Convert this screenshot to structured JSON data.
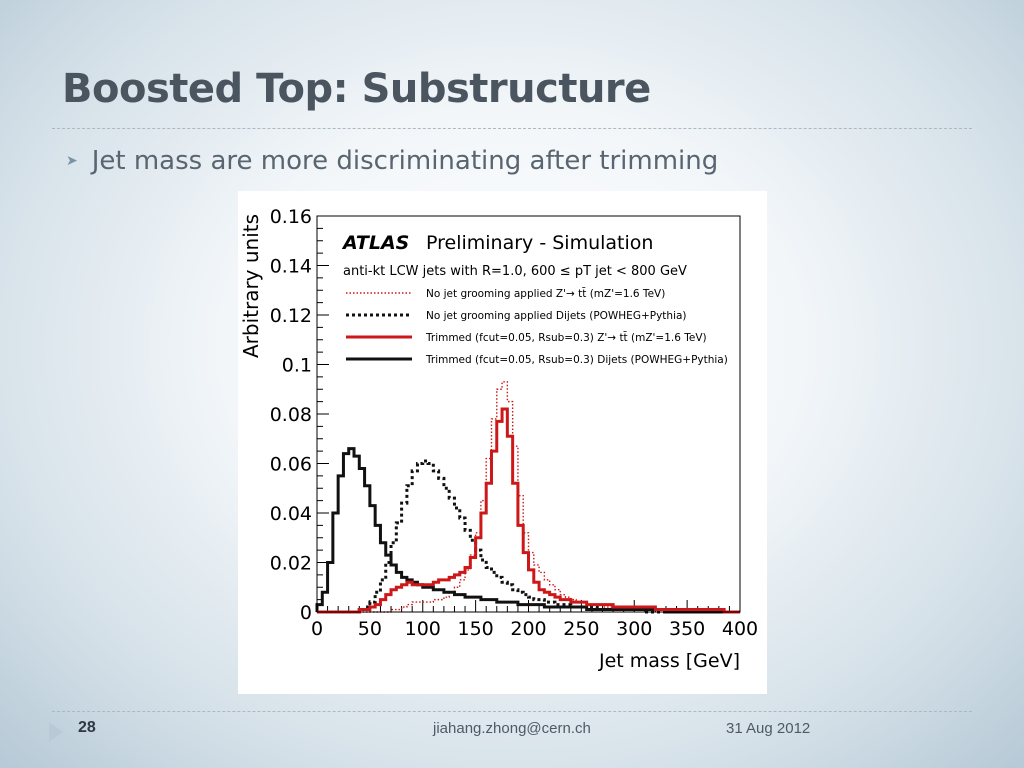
{
  "slide": {
    "title": "Boosted Top: Substructure",
    "bullet": "Jet mass are more discriminating after trimming",
    "footer": {
      "page": "28",
      "email": "jiahang.zhong@cern.ch",
      "date": "31 Aug 2012"
    }
  },
  "chart_data": {
    "type": "line",
    "step": true,
    "ylabel": "Arbitrary units",
    "xlabel": "Jet mass [GeV]",
    "xlim": [
      0,
      400
    ],
    "ylim": [
      0,
      0.16
    ],
    "xticks": [
      "0",
      "50",
      "100",
      "150",
      "200",
      "250",
      "300",
      "350",
      "400"
    ],
    "yticks": [
      "0",
      "0.02",
      "0.04",
      "0.06",
      "0.08",
      "0.1",
      "0.12",
      "0.14",
      "0.16"
    ],
    "header": {
      "brand": "ATLAS",
      "subtitle": "Preliminary - Simulation",
      "selection": "anti-kt LCW jets with R=1.0, 600 ≤ pT jet < 800 GeV"
    },
    "x": [
      0,
      5,
      10,
      15,
      20,
      25,
      30,
      35,
      40,
      45,
      50,
      55,
      60,
      65,
      70,
      75,
      80,
      85,
      90,
      95,
      100,
      105,
      110,
      115,
      120,
      125,
      130,
      135,
      140,
      145,
      150,
      155,
      160,
      165,
      170,
      175,
      180,
      185,
      190,
      195,
      200,
      205,
      210,
      215,
      220,
      225,
      230,
      235,
      240,
      245,
      250,
      255,
      260,
      265,
      270,
      275,
      280,
      285,
      290,
      295,
      300,
      305,
      310,
      315,
      320,
      325,
      330,
      335,
      340,
      345,
      350,
      355,
      360,
      365,
      370,
      375,
      380,
      385,
      390,
      395
    ],
    "series": [
      {
        "name": "No jet grooming applied Z'→ tt̄ (mZ'=1.6 TeV)",
        "color": "#cc1818",
        "style": "dotted",
        "values": [
          0,
          0,
          0,
          0,
          0,
          0,
          0,
          0,
          0,
          0,
          0,
          0,
          0,
          0,
          0.001,
          0.001,
          0.002,
          0.003,
          0.004,
          0.004,
          0.004,
          0.004,
          0.005,
          0.005,
          0.006,
          0.008,
          0.01,
          0.013,
          0.017,
          0.023,
          0.032,
          0.045,
          0.062,
          0.078,
          0.09,
          0.093,
          0.085,
          0.067,
          0.047,
          0.032,
          0.024,
          0.019,
          0.016,
          0.013,
          0.011,
          0.009,
          0.007,
          0.006,
          0.005,
          0.004,
          0.004,
          0.003,
          0.003,
          0.003,
          0.002,
          0.002,
          0.002,
          0.002,
          0.001,
          0.001,
          0.001,
          0.001,
          0.001,
          0.001,
          0.001,
          0.001,
          0.001,
          0,
          0,
          0,
          0,
          0,
          0,
          0,
          0,
          0,
          0,
          0,
          0,
          0
        ]
      },
      {
        "name": "No jet grooming applied Dijets (POWHEG+Pythia)",
        "color": "#111111",
        "style": "dotted",
        "values": [
          0,
          0,
          0,
          0,
          0,
          0,
          0,
          0,
          0.001,
          0.002,
          0.004,
          0.008,
          0.013,
          0.02,
          0.028,
          0.036,
          0.044,
          0.051,
          0.057,
          0.06,
          0.061,
          0.06,
          0.057,
          0.054,
          0.05,
          0.046,
          0.042,
          0.038,
          0.033,
          0.029,
          0.025,
          0.021,
          0.018,
          0.016,
          0.014,
          0.012,
          0.011,
          0.009,
          0.008,
          0.007,
          0.006,
          0.005,
          0.005,
          0.004,
          0.004,
          0.003,
          0.003,
          0.003,
          0.002,
          0.002,
          0.002,
          0.002,
          0.002,
          0.001,
          0.001,
          0.001,
          0.001,
          0.001,
          0.001,
          0.001,
          0.001,
          0.001,
          0,
          0,
          0,
          0,
          0,
          0,
          0,
          0,
          0,
          0,
          0,
          0,
          0,
          0,
          0,
          0,
          0,
          0
        ]
      },
      {
        "name": "Trimmed (fcut=0.05, Rsub=0.3) Z'→ tt̄ (mZ'=1.6 TeV)",
        "color": "#cc1818",
        "style": "solid",
        "values": [
          0,
          0,
          0,
          0,
          0,
          0,
          0,
          0,
          0.001,
          0.001,
          0.002,
          0.003,
          0.005,
          0.007,
          0.009,
          0.01,
          0.011,
          0.012,
          0.011,
          0.011,
          0.011,
          0.011,
          0.012,
          0.013,
          0.013,
          0.014,
          0.015,
          0.016,
          0.018,
          0.022,
          0.03,
          0.04,
          0.052,
          0.065,
          0.077,
          0.082,
          0.071,
          0.052,
          0.035,
          0.024,
          0.017,
          0.012,
          0.009,
          0.008,
          0.007,
          0.006,
          0.005,
          0.005,
          0.004,
          0.004,
          0.004,
          0.003,
          0.003,
          0.003,
          0.003,
          0.003,
          0.002,
          0.002,
          0.002,
          0.002,
          0.002,
          0.002,
          0.002,
          0.002,
          0.001,
          0.001,
          0.001,
          0.001,
          0.001,
          0.001,
          0.001,
          0.001,
          0.001,
          0.001,
          0.001,
          0.001,
          0.001,
          0,
          0,
          0
        ]
      },
      {
        "name": "Trimmed (fcut=0.05, Rsub=0.3) Dijets (POWHEG+Pythia)",
        "color": "#111111",
        "style": "solid",
        "values": [
          0.003,
          0.008,
          0.02,
          0.04,
          0.055,
          0.064,
          0.066,
          0.063,
          0.058,
          0.051,
          0.043,
          0.035,
          0.028,
          0.023,
          0.019,
          0.016,
          0.014,
          0.013,
          0.012,
          0.011,
          0.01,
          0.01,
          0.009,
          0.009,
          0.008,
          0.008,
          0.007,
          0.007,
          0.006,
          0.006,
          0.006,
          0.005,
          0.005,
          0.005,
          0.004,
          0.004,
          0.004,
          0.004,
          0.003,
          0.003,
          0.003,
          0.003,
          0.003,
          0.002,
          0.002,
          0.002,
          0.002,
          0.002,
          0.002,
          0.002,
          0.002,
          0.001,
          0.001,
          0.001,
          0.001,
          0.001,
          0.001,
          0.001,
          0.001,
          0.001,
          0.001,
          0.001,
          0.001,
          0.001,
          0.001,
          0.001,
          0,
          0,
          0,
          0,
          0,
          0,
          0,
          0,
          0,
          0,
          0,
          0,
          0,
          0
        ]
      }
    ]
  }
}
